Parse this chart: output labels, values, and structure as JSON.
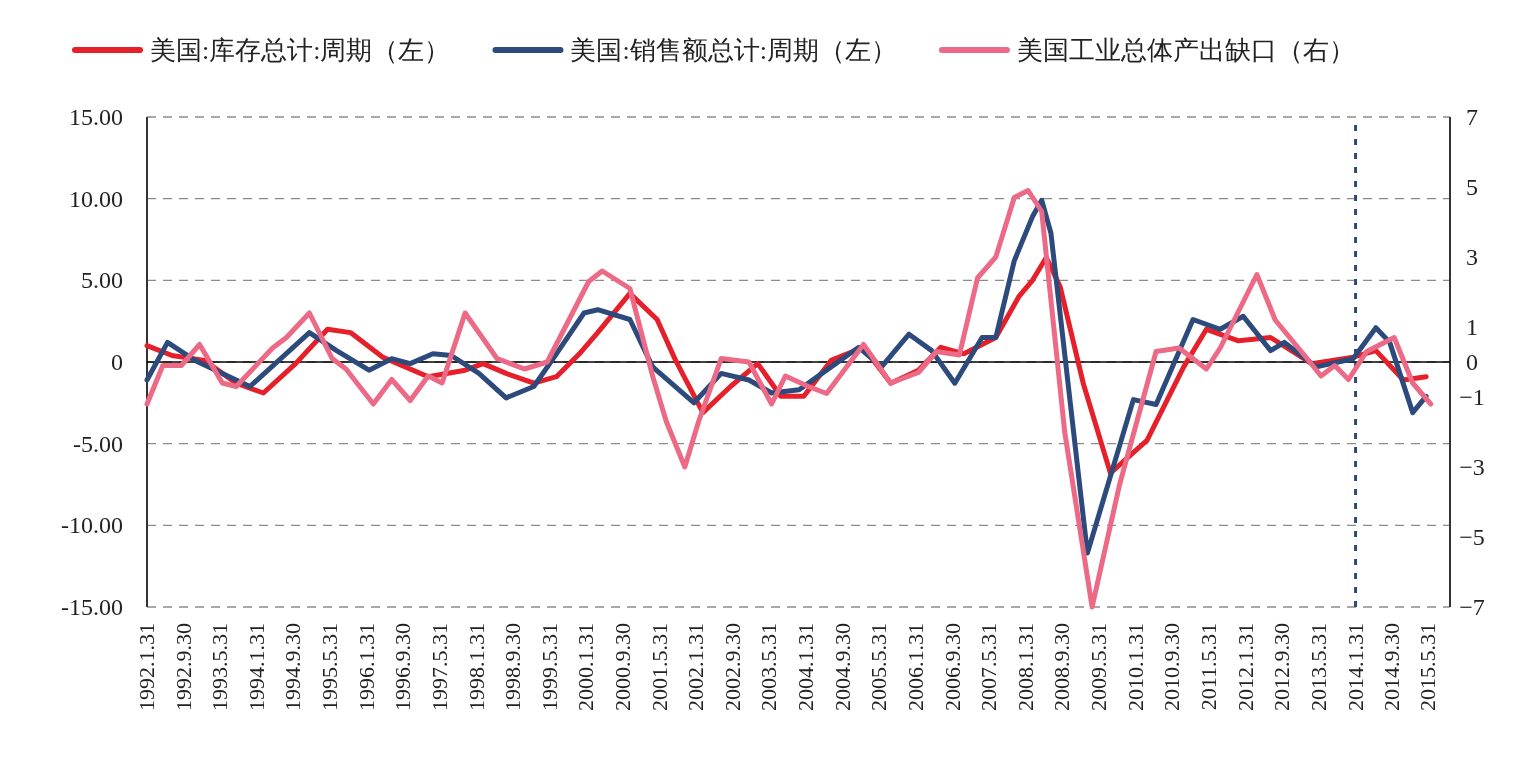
{
  "chart_data": {
    "type": "line",
    "legend": "top",
    "grid": "y",
    "line_style": "solid",
    "marker": "none",
    "xlim": [
      "1992-01-31",
      "2015-10-21"
    ],
    "xticks": [
      {
        "value": "1992-01-31",
        "label": "1992.1.31"
      },
      {
        "value": "1992-09-30",
        "label": "1992.9.30"
      },
      {
        "value": "1993-05-31",
        "label": "1993.5.31"
      },
      {
        "value": "1994-01-31",
        "label": "1994.1.31"
      },
      {
        "value": "1994-09-30",
        "label": "1994.9.30"
      },
      {
        "value": "1995-05-31",
        "label": "1995.5.31"
      },
      {
        "value": "1996-01-31",
        "label": "1996.1.31"
      },
      {
        "value": "1996-09-30",
        "label": "1996.9.30"
      },
      {
        "value": "1997-05-31",
        "label": "1997.5.31"
      },
      {
        "value": "1998-01-31",
        "label": "1998.1.31"
      },
      {
        "value": "1998-09-30",
        "label": "1998.9.30"
      },
      {
        "value": "1999-05-31",
        "label": "1999.5.31"
      },
      {
        "value": "2000-01-31",
        "label": "2000.1.31"
      },
      {
        "value": "2000-09-30",
        "label": "2000.9.30"
      },
      {
        "value": "2001-05-31",
        "label": "2001.5.31"
      },
      {
        "value": "2002-01-31",
        "label": "2002.1.31"
      },
      {
        "value": "2002-09-30",
        "label": "2002.9.30"
      },
      {
        "value": "2003-05-31",
        "label": "2003.5.31"
      },
      {
        "value": "2004-01-31",
        "label": "2004.1.31"
      },
      {
        "value": "2004-09-30",
        "label": "2004.9.30"
      },
      {
        "value": "2005-05-31",
        "label": "2005.5.31"
      },
      {
        "value": "2006-01-31",
        "label": "2006.1.31"
      },
      {
        "value": "2006-09-30",
        "label": "2006.9.30"
      },
      {
        "value": "2007-05-31",
        "label": "2007.5.31"
      },
      {
        "value": "2008-01-31",
        "label": "2008.1.31"
      },
      {
        "value": "2008-09-30",
        "label": "2008.9.30"
      },
      {
        "value": "2009-05-31",
        "label": "2009.5.31"
      },
      {
        "value": "2010-01-31",
        "label": "2010.1.31"
      },
      {
        "value": "2010-09-30",
        "label": "2010.9.30"
      },
      {
        "value": "2011-05-31",
        "label": "2011.5.31"
      },
      {
        "value": "2012-01-31",
        "label": "2012.1.31"
      },
      {
        "value": "2012-09-30",
        "label": "2012.9.30"
      },
      {
        "value": "2013-05-31",
        "label": "2013.5.31"
      },
      {
        "value": "2014-01-31",
        "label": "2014.1.31"
      },
      {
        "value": "2014-09-30",
        "label": "2014.9.30"
      },
      {
        "value": "2015-05-31",
        "label": "2015.5.31"
      }
    ],
    "ylim": [
      -15,
      15
    ],
    "yticks": [
      {
        "value": 15,
        "label": "15.00"
      },
      {
        "value": 10,
        "label": "10.00"
      },
      {
        "value": 5,
        "label": "5.00"
      },
      0,
      {
        "value": -5,
        "label": "-5.00"
      },
      {
        "value": -10,
        "label": "-10.00"
      },
      {
        "value": -15,
        "label": "-15.00"
      }
    ],
    "y2lim": [
      -7,
      7
    ],
    "y2ticks": [
      7,
      5,
      3,
      1,
      0,
      -1,
      -3,
      -5,
      -7
    ],
    "ref_lines": [
      {
        "axis": "y",
        "value": 0,
        "color": "#000000",
        "line_style": "solid"
      },
      {
        "axis": "x",
        "value": "2014-01-31",
        "color": "#2c4a7c",
        "line_style": "dashed"
      }
    ],
    "series": [
      {
        "name": "美国:库存总计:周期（左）",
        "color": "#e5202a",
        "axis": "y",
        "x": [
          "1992-01-31",
          "1992-07",
          "1993-02",
          "1993-09",
          "1994-03",
          "1994-10",
          "1995-05",
          "1995-10",
          "1996-05",
          "1997-03",
          "1997-11",
          "1998-03",
          "1998-08",
          "1999-02",
          "1999-07",
          "1999-12",
          "2000-04",
          "2000-11",
          "2001-05",
          "2001-09",
          "2002-03",
          "2002-09",
          "2003-03",
          "2003-08",
          "2004-01",
          "2004-07",
          "2005-02",
          "2005-08",
          "2006-02",
          "2006-07",
          "2006-12",
          "2007-07",
          "2007-12",
          "2008-03",
          "2008-06",
          "2008-09",
          "2009-02",
          "2009-08",
          "2010-04",
          "2010-12",
          "2011-05",
          "2011-12",
          "2012-07",
          "2013-04",
          "2014-01",
          "2014-06",
          "2014-12",
          "2015-05"
        ],
        "values": [
          1.0,
          0.4,
          0.1,
          -1.3,
          -1.9,
          -0.1,
          2.0,
          1.8,
          0.3,
          -0.9,
          -0.5,
          -0.1,
          -0.7,
          -1.3,
          -0.9,
          0.5,
          1.8,
          4.2,
          2.6,
          0.1,
          -3.1,
          -1.5,
          -0.1,
          -2.1,
          -2.1,
          0.1,
          0.9,
          -1.3,
          -0.5,
          0.9,
          0.5,
          1.5,
          4.0,
          5.0,
          6.4,
          4.6,
          -1.3,
          -6.8,
          -4.8,
          -0.3,
          2.0,
          1.3,
          1.5,
          -0.1,
          0.3,
          0.7,
          -1.1,
          -0.9
        ]
      },
      {
        "name": "美国:销售额总计:周期（左）",
        "color": "#2c4a7c",
        "axis": "y",
        "x": [
          "1992-01-31",
          "1992-06",
          "1992-12",
          "1993-12",
          "1995-01",
          "1995-07",
          "1996-02",
          "1996-07",
          "1996-11",
          "1997-04",
          "1997-08",
          "1998-02",
          "1998-08",
          "1999-02",
          "1999-07",
          "2000-01",
          "2000-04",
          "2000-11",
          "2001-04",
          "2002-01",
          "2002-07",
          "2003-01",
          "2003-06",
          "2003-12",
          "2004-05",
          "2005-01",
          "2005-06",
          "2005-12",
          "2006-05",
          "2006-10",
          "2007-04",
          "2007-07",
          "2007-11",
          "2008-03",
          "2008-05",
          "2008-07",
          "2009-03",
          "2010-01",
          "2010-06",
          "2011-02",
          "2011-08",
          "2012-01",
          "2012-07",
          "2012-10",
          "2013-05",
          "2014-01",
          "2014-06",
          "2014-09",
          "2015-02",
          "2015-05"
        ],
        "values": [
          -1.1,
          1.2,
          0.1,
          -1.5,
          1.8,
          0.7,
          -0.5,
          0.2,
          -0.1,
          0.5,
          0.4,
          -0.7,
          -2.2,
          -1.5,
          0.5,
          3.0,
          3.2,
          2.6,
          -0.3,
          -2.5,
          -0.7,
          -1.1,
          -1.9,
          -1.7,
          -0.7,
          0.9,
          -0.3,
          1.7,
          0.7,
          -1.3,
          1.5,
          1.5,
          6.2,
          8.9,
          9.9,
          7.9,
          -11.7,
          -2.3,
          -2.6,
          2.6,
          2.0,
          2.8,
          0.7,
          1.2,
          -0.3,
          0.2,
          2.1,
          1.2,
          -3.1,
          -2.1
        ]
      },
      {
        "name": "美国工业总体产出缺口（右）",
        "color": "#ec6a86",
        "axis": "y2",
        "x": [
          "1992-01-31",
          "1992-05",
          "1992-09",
          "1993-01",
          "1993-06",
          "1993-09",
          "1994-05",
          "1994-08",
          "1995-01",
          "1995-06",
          "1995-09",
          "1996-03",
          "1996-07",
          "1996-11",
          "1997-03",
          "1997-06",
          "1997-11",
          "1998-06",
          "1998-12",
          "1999-05",
          "2000-02",
          "2000-05",
          "2000-11",
          "2001-04",
          "2001-07",
          "2001-11",
          "2002-02",
          "2002-07",
          "2003-01",
          "2003-06",
          "2003-09",
          "2004-02",
          "2004-06",
          "2005-02",
          "2005-08",
          "2006-02",
          "2006-06",
          "2006-11",
          "2007-03",
          "2007-07",
          "2007-11",
          "2008-02",
          "2008-05",
          "2008-10",
          "2009-04",
          "2009-10",
          "2010-06",
          "2010-11",
          "2011-05",
          "2011-08",
          "2012-04",
          "2012-08",
          "2013-03",
          "2013-06",
          "2013-09",
          "2013-12",
          "2014-04",
          "2014-10",
          "2015-02",
          "2015-06"
        ],
        "values": [
          -1.2,
          -0.1,
          -0.1,
          0.5,
          -0.6,
          -0.7,
          0.4,
          0.7,
          1.4,
          0.1,
          -0.2,
          -1.2,
          -0.5,
          -1.1,
          -0.4,
          -0.6,
          1.4,
          0.1,
          -0.2,
          0,
          2.3,
          2.6,
          2.1,
          -0.4,
          -1.7,
          -3.0,
          -1.7,
          0.1,
          0,
          -1.2,
          -0.4,
          -0.7,
          -0.9,
          0.5,
          -0.6,
          -0.3,
          0.3,
          0.2,
          2.4,
          3.0,
          4.7,
          4.9,
          4.3,
          -2.0,
          -7.0,
          -3.5,
          0.3,
          0.4,
          -0.2,
          0.4,
          2.5,
          1.2,
          0.1,
          -0.4,
          -0.1,
          -0.5,
          0.3,
          0.7,
          -0.6,
          -1.2
        ]
      }
    ]
  }
}
